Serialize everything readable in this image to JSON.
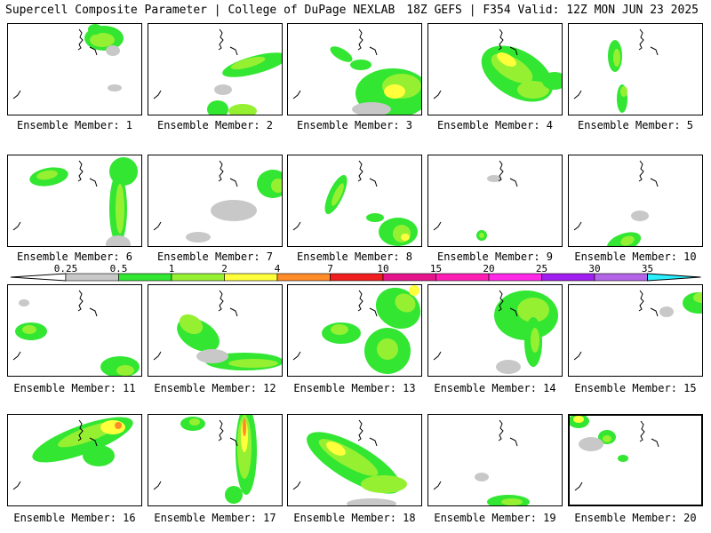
{
  "header": {
    "title": "Supercell Composite Parameter | College of DuPage NEXLAB",
    "run_info": "18Z GEFS | F354 Valid: 12Z MON JUN 23 2025"
  },
  "legend": {
    "levels": [
      "0.25",
      "0.5",
      "1",
      "2",
      "4",
      "7",
      "10",
      "15",
      "20",
      "25",
      "30",
      "35"
    ],
    "colors": [
      "#c8c8c8",
      "#32e632",
      "#96f032",
      "#ffff3c",
      "#ff8c28",
      "#f01e1e",
      "#e6148c",
      "#ff1eb4",
      "#ff28e6",
      "#a01ef0",
      "#b464e6",
      "#28f0ff"
    ]
  },
  "panels": [
    {
      "label": "Ensemble Member: 1"
    },
    {
      "label": "Ensemble Member: 2"
    },
    {
      "label": "Ensemble Member: 3"
    },
    {
      "label": "Ensemble Member: 4"
    },
    {
      "label": "Ensemble Member: 5"
    },
    {
      "label": "Ensemble Member: 6"
    },
    {
      "label": "Ensemble Member: 7"
    },
    {
      "label": "Ensemble Member: 8"
    },
    {
      "label": "Ensemble Member: 9"
    },
    {
      "label": "Ensemble Member: 10"
    },
    {
      "label": "Ensemble Member: 11"
    },
    {
      "label": "Ensemble Member: 12"
    },
    {
      "label": "Ensemble Member: 13"
    },
    {
      "label": "Ensemble Member: 14"
    },
    {
      "label": "Ensemble Member: 15"
    },
    {
      "label": "Ensemble Member: 16"
    },
    {
      "label": "Ensemble Member: 17"
    },
    {
      "label": "Ensemble Member: 18"
    },
    {
      "label": "Ensemble Member: 19"
    },
    {
      "label": "Ensemble Member: 20"
    }
  ]
}
